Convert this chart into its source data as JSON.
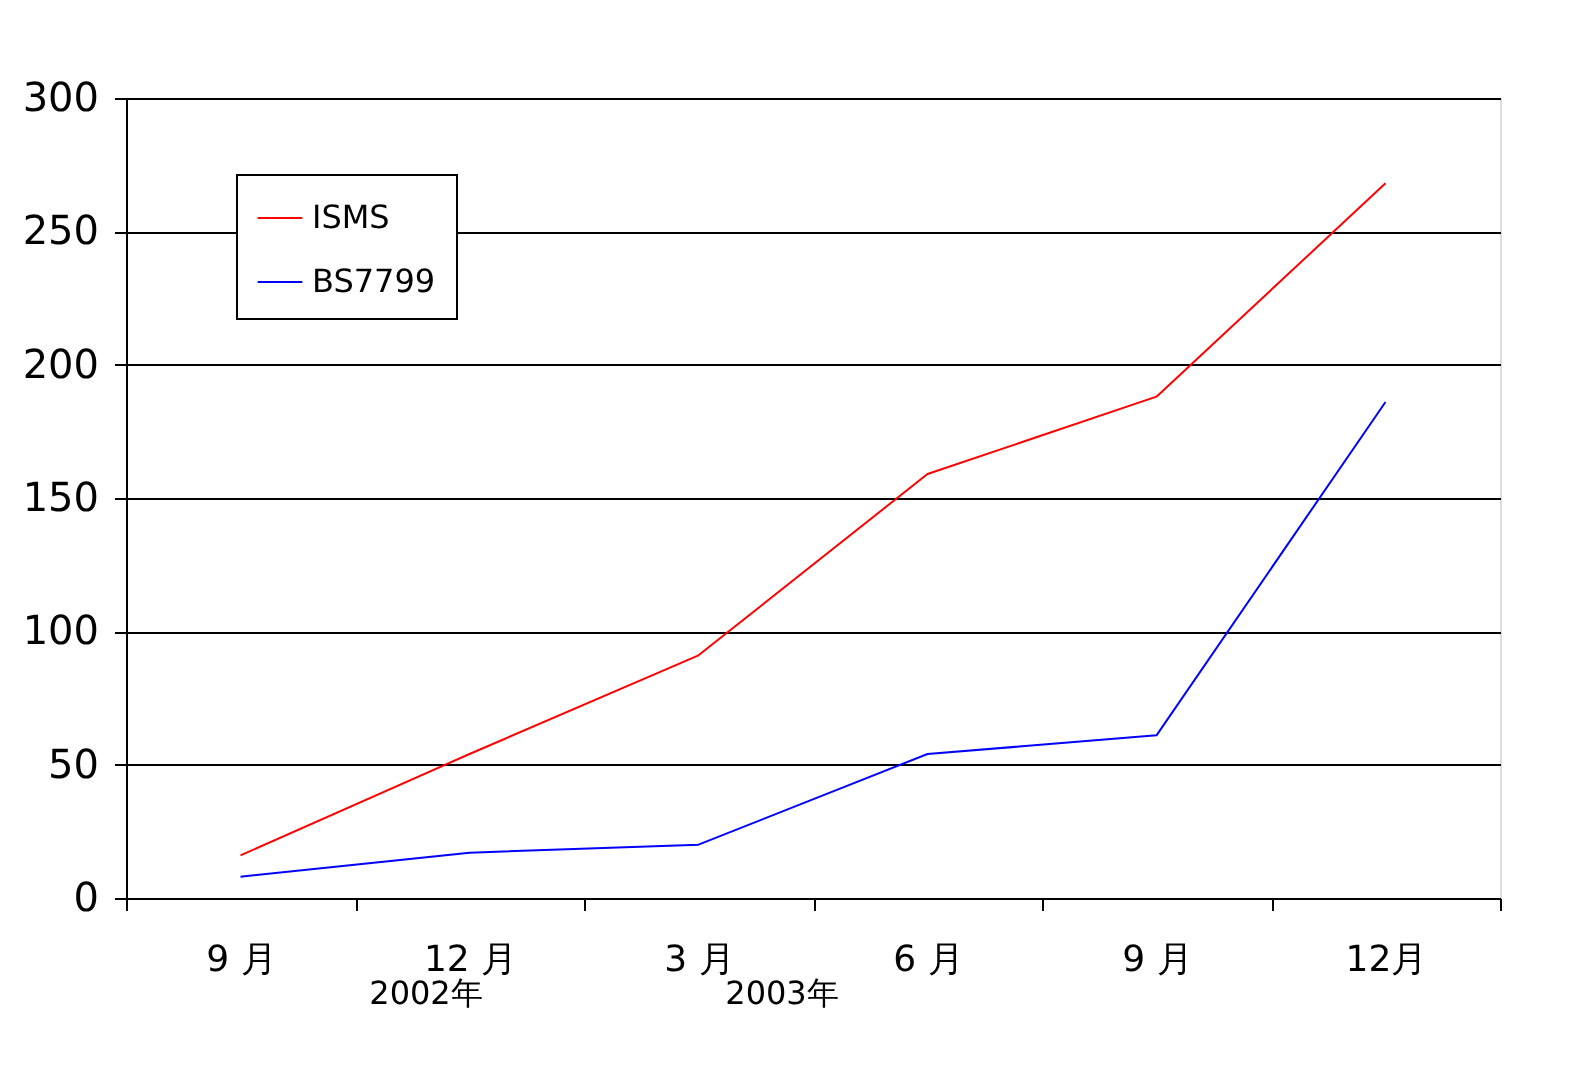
{
  "chart_data": {
    "type": "line",
    "categories": [
      "9 月",
      "12 月",
      "3 月",
      "6 月",
      "9 月",
      "12月"
    ],
    "series": [
      {
        "name": "ISMS",
        "color": "#ff0000",
        "values": [
          16,
          54,
          91,
          159,
          188,
          268
        ]
      },
      {
        "name": "BS7799",
        "color": "#0000ff",
        "values": [
          8,
          17,
          20,
          54,
          61,
          186
        ]
      }
    ],
    "ylim": [
      0,
      300
    ],
    "yticks": [
      0,
      50,
      100,
      150,
      200,
      250,
      300
    ],
    "grid": "y",
    "legend": "top left",
    "marker": "none",
    "line_style": "solid",
    "annotations": [
      "2002年",
      "2003年"
    ]
  }
}
